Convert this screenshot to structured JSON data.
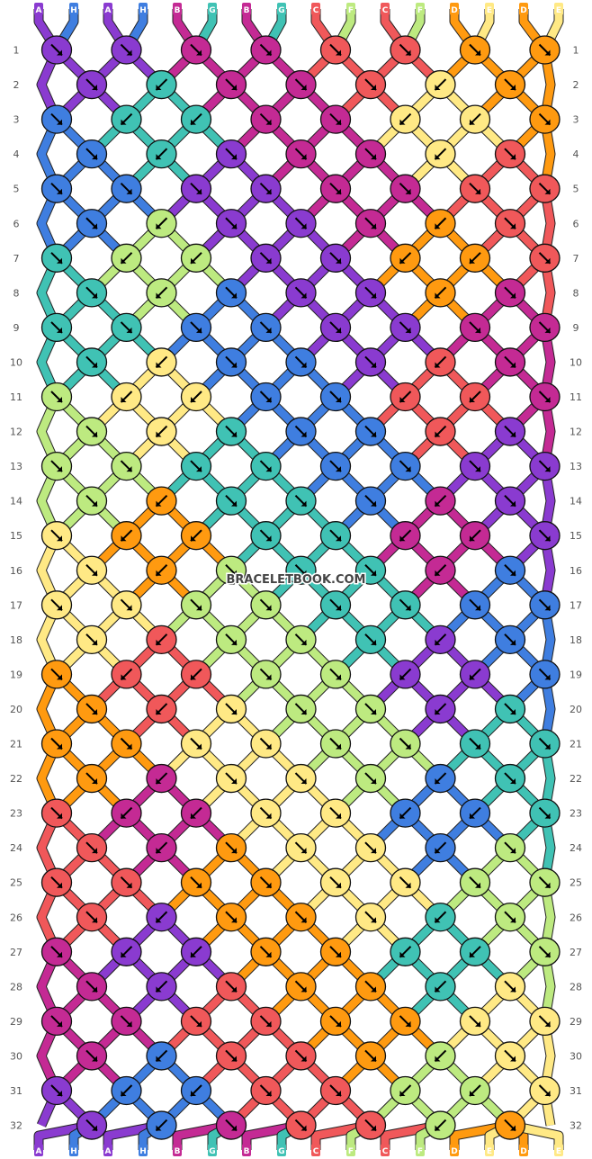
{
  "watermark": "BRACELETBOOK.COM",
  "colors": {
    "A": "#8a3bd0",
    "H": "#3f7ee0",
    "B": "#c42a94",
    "G": "#40c2b4",
    "C": "#f0585a",
    "F": "#bdea80",
    "D": "#ff9a10",
    "E": "#ffe985"
  },
  "top_strings": [
    "A",
    "H",
    "A",
    "H",
    "B",
    "G",
    "B",
    "G",
    "C",
    "F",
    "C",
    "F",
    "D",
    "E",
    "D",
    "E"
  ],
  "bottom_strings": [
    "A",
    "H",
    "A",
    "H",
    "B",
    "G",
    "B",
    "G",
    "C",
    "F",
    "C",
    "F",
    "D",
    "E",
    "D",
    "E"
  ],
  "row_numbers": [
    "1",
    "2",
    "3",
    "4",
    "5",
    "6",
    "7",
    "8",
    "9",
    "10",
    "11",
    "12",
    "13",
    "14",
    "15",
    "16",
    "17",
    "18",
    "19",
    "20",
    "21",
    "22",
    "23",
    "24",
    "25",
    "26",
    "27",
    "28",
    "29",
    "30",
    "31",
    "32"
  ],
  "knot_rows": [
    {
      "row": "1",
      "knots": [
        {
          "c": "A",
          "d": "r"
        },
        {
          "c": "A",
          "d": "r"
        },
        {
          "c": "B",
          "d": "r"
        },
        {
          "c": "B",
          "d": "r"
        },
        {
          "c": "C",
          "d": "r"
        },
        {
          "c": "C",
          "d": "r"
        },
        {
          "c": "D",
          "d": "r"
        },
        {
          "c": "D",
          "d": "r"
        }
      ]
    },
    {
      "row": "2",
      "knots": [
        {
          "c": "A",
          "d": "r"
        },
        {
          "c": "G",
          "d": "l"
        },
        {
          "c": "B",
          "d": "r"
        },
        {
          "c": "B",
          "d": "r"
        },
        {
          "c": "C",
          "d": "r"
        },
        {
          "c": "E",
          "d": "l"
        },
        {
          "c": "D",
          "d": "r"
        }
      ]
    },
    {
      "row": "3",
      "knots": [
        {
          "c": "H",
          "d": "r"
        },
        {
          "c": "G",
          "d": "l"
        },
        {
          "c": "G",
          "d": "l"
        },
        {
          "c": "B",
          "d": "r"
        },
        {
          "c": "B",
          "d": "r"
        },
        {
          "c": "E",
          "d": "l"
        },
        {
          "c": "E",
          "d": "l"
        },
        {
          "c": "D",
          "d": "r"
        }
      ]
    },
    {
      "row": "4",
      "knots": [
        {
          "c": "H",
          "d": "r"
        },
        {
          "c": "G",
          "d": "l"
        },
        {
          "c": "A",
          "d": "r"
        },
        {
          "c": "B",
          "d": "r"
        },
        {
          "c": "B",
          "d": "r"
        },
        {
          "c": "E",
          "d": "l"
        },
        {
          "c": "C",
          "d": "r"
        }
      ]
    },
    {
      "row": "5",
      "knots": [
        {
          "c": "H",
          "d": "r"
        },
        {
          "c": "H",
          "d": "r"
        },
        {
          "c": "A",
          "d": "r"
        },
        {
          "c": "A",
          "d": "r"
        },
        {
          "c": "B",
          "d": "r"
        },
        {
          "c": "B",
          "d": "r"
        },
        {
          "c": "C",
          "d": "r"
        },
        {
          "c": "C",
          "d": "r"
        }
      ]
    },
    {
      "row": "6",
      "knots": [
        {
          "c": "H",
          "d": "r"
        },
        {
          "c": "F",
          "d": "l"
        },
        {
          "c": "A",
          "d": "r"
        },
        {
          "c": "A",
          "d": "r"
        },
        {
          "c": "B",
          "d": "r"
        },
        {
          "c": "D",
          "d": "l"
        },
        {
          "c": "C",
          "d": "r"
        }
      ]
    },
    {
      "row": "7",
      "knots": [
        {
          "c": "G",
          "d": "r"
        },
        {
          "c": "F",
          "d": "l"
        },
        {
          "c": "F",
          "d": "l"
        },
        {
          "c": "A",
          "d": "r"
        },
        {
          "c": "A",
          "d": "r"
        },
        {
          "c": "D",
          "d": "l"
        },
        {
          "c": "D",
          "d": "l"
        },
        {
          "c": "C",
          "d": "r"
        }
      ]
    },
    {
      "row": "8",
      "knots": [
        {
          "c": "G",
          "d": "r"
        },
        {
          "c": "F",
          "d": "l"
        },
        {
          "c": "H",
          "d": "r"
        },
        {
          "c": "A",
          "d": "r"
        },
        {
          "c": "A",
          "d": "r"
        },
        {
          "c": "D",
          "d": "l"
        },
        {
          "c": "B",
          "d": "r"
        }
      ]
    },
    {
      "row": "9",
      "knots": [
        {
          "c": "G",
          "d": "r"
        },
        {
          "c": "G",
          "d": "r"
        },
        {
          "c": "H",
          "d": "r"
        },
        {
          "c": "H",
          "d": "r"
        },
        {
          "c": "A",
          "d": "r"
        },
        {
          "c": "A",
          "d": "r"
        },
        {
          "c": "B",
          "d": "r"
        },
        {
          "c": "B",
          "d": "r"
        }
      ]
    },
    {
      "row": "10",
      "knots": [
        {
          "c": "G",
          "d": "r"
        },
        {
          "c": "E",
          "d": "l"
        },
        {
          "c": "H",
          "d": "r"
        },
        {
          "c": "H",
          "d": "r"
        },
        {
          "c": "A",
          "d": "r"
        },
        {
          "c": "C",
          "d": "l"
        },
        {
          "c": "B",
          "d": "r"
        }
      ]
    },
    {
      "row": "11",
      "knots": [
        {
          "c": "F",
          "d": "r"
        },
        {
          "c": "E",
          "d": "l"
        },
        {
          "c": "E",
          "d": "l"
        },
        {
          "c": "H",
          "d": "r"
        },
        {
          "c": "H",
          "d": "r"
        },
        {
          "c": "C",
          "d": "l"
        },
        {
          "c": "C",
          "d": "l"
        },
        {
          "c": "B",
          "d": "r"
        }
      ]
    },
    {
      "row": "12",
      "knots": [
        {
          "c": "F",
          "d": "r"
        },
        {
          "c": "E",
          "d": "l"
        },
        {
          "c": "G",
          "d": "r"
        },
        {
          "c": "H",
          "d": "r"
        },
        {
          "c": "H",
          "d": "r"
        },
        {
          "c": "C",
          "d": "l"
        },
        {
          "c": "A",
          "d": "r"
        }
      ]
    },
    {
      "row": "13",
      "knots": [
        {
          "c": "F",
          "d": "r"
        },
        {
          "c": "F",
          "d": "r"
        },
        {
          "c": "G",
          "d": "r"
        },
        {
          "c": "G",
          "d": "r"
        },
        {
          "c": "H",
          "d": "r"
        },
        {
          "c": "H",
          "d": "r"
        },
        {
          "c": "A",
          "d": "r"
        },
        {
          "c": "A",
          "d": "r"
        }
      ]
    },
    {
      "row": "14",
      "knots": [
        {
          "c": "F",
          "d": "r"
        },
        {
          "c": "D",
          "d": "l"
        },
        {
          "c": "G",
          "d": "r"
        },
        {
          "c": "G",
          "d": "r"
        },
        {
          "c": "H",
          "d": "r"
        },
        {
          "c": "B",
          "d": "l"
        },
        {
          "c": "A",
          "d": "r"
        }
      ]
    },
    {
      "row": "15",
      "knots": [
        {
          "c": "E",
          "d": "r"
        },
        {
          "c": "D",
          "d": "l"
        },
        {
          "c": "D",
          "d": "l"
        },
        {
          "c": "G",
          "d": "r"
        },
        {
          "c": "G",
          "d": "r"
        },
        {
          "c": "B",
          "d": "l"
        },
        {
          "c": "B",
          "d": "l"
        },
        {
          "c": "A",
          "d": "r"
        }
      ]
    },
    {
      "row": "16",
      "knots": [
        {
          "c": "E",
          "d": "r"
        },
        {
          "c": "D",
          "d": "l"
        },
        {
          "c": "F",
          "d": "r"
        },
        {
          "c": "G",
          "d": "r"
        },
        {
          "c": "G",
          "d": "r"
        },
        {
          "c": "B",
          "d": "l"
        },
        {
          "c": "H",
          "d": "r"
        }
      ]
    },
    {
      "row": "17",
      "knots": [
        {
          "c": "E",
          "d": "r"
        },
        {
          "c": "E",
          "d": "r"
        },
        {
          "c": "F",
          "d": "r"
        },
        {
          "c": "F",
          "d": "r"
        },
        {
          "c": "G",
          "d": "r"
        },
        {
          "c": "G",
          "d": "r"
        },
        {
          "c": "H",
          "d": "r"
        },
        {
          "c": "H",
          "d": "r"
        }
      ]
    },
    {
      "row": "18",
      "knots": [
        {
          "c": "E",
          "d": "r"
        },
        {
          "c": "C",
          "d": "l"
        },
        {
          "c": "F",
          "d": "r"
        },
        {
          "c": "F",
          "d": "r"
        },
        {
          "c": "G",
          "d": "r"
        },
        {
          "c": "A",
          "d": "l"
        },
        {
          "c": "H",
          "d": "r"
        }
      ]
    },
    {
      "row": "19",
      "knots": [
        {
          "c": "D",
          "d": "r"
        },
        {
          "c": "C",
          "d": "l"
        },
        {
          "c": "C",
          "d": "l"
        },
        {
          "c": "F",
          "d": "r"
        },
        {
          "c": "F",
          "d": "r"
        },
        {
          "c": "A",
          "d": "l"
        },
        {
          "c": "A",
          "d": "l"
        },
        {
          "c": "H",
          "d": "r"
        }
      ]
    },
    {
      "row": "20",
      "knots": [
        {
          "c": "D",
          "d": "r"
        },
        {
          "c": "C",
          "d": "l"
        },
        {
          "c": "E",
          "d": "r"
        },
        {
          "c": "F",
          "d": "r"
        },
        {
          "c": "F",
          "d": "r"
        },
        {
          "c": "A",
          "d": "l"
        },
        {
          "c": "G",
          "d": "r"
        }
      ]
    },
    {
      "row": "21",
      "knots": [
        {
          "c": "D",
          "d": "r"
        },
        {
          "c": "D",
          "d": "r"
        },
        {
          "c": "E",
          "d": "r"
        },
        {
          "c": "E",
          "d": "r"
        },
        {
          "c": "F",
          "d": "r"
        },
        {
          "c": "F",
          "d": "r"
        },
        {
          "c": "G",
          "d": "r"
        },
        {
          "c": "G",
          "d": "r"
        }
      ]
    },
    {
      "row": "22",
      "knots": [
        {
          "c": "D",
          "d": "r"
        },
        {
          "c": "B",
          "d": "l"
        },
        {
          "c": "E",
          "d": "r"
        },
        {
          "c": "E",
          "d": "r"
        },
        {
          "c": "F",
          "d": "r"
        },
        {
          "c": "H",
          "d": "l"
        },
        {
          "c": "G",
          "d": "r"
        }
      ]
    },
    {
      "row": "23",
      "knots": [
        {
          "c": "C",
          "d": "r"
        },
        {
          "c": "B",
          "d": "l"
        },
        {
          "c": "B",
          "d": "l"
        },
        {
          "c": "E",
          "d": "r"
        },
        {
          "c": "E",
          "d": "r"
        },
        {
          "c": "H",
          "d": "l"
        },
        {
          "c": "H",
          "d": "l"
        },
        {
          "c": "G",
          "d": "r"
        }
      ]
    },
    {
      "row": "24",
      "knots": [
        {
          "c": "C",
          "d": "r"
        },
        {
          "c": "B",
          "d": "l"
        },
        {
          "c": "D",
          "d": "r"
        },
        {
          "c": "E",
          "d": "r"
        },
        {
          "c": "E",
          "d": "r"
        },
        {
          "c": "H",
          "d": "l"
        },
        {
          "c": "F",
          "d": "r"
        }
      ]
    },
    {
      "row": "25",
      "knots": [
        {
          "c": "C",
          "d": "r"
        },
        {
          "c": "C",
          "d": "r"
        },
        {
          "c": "D",
          "d": "r"
        },
        {
          "c": "D",
          "d": "r"
        },
        {
          "c": "E",
          "d": "r"
        },
        {
          "c": "E",
          "d": "r"
        },
        {
          "c": "F",
          "d": "r"
        },
        {
          "c": "F",
          "d": "r"
        }
      ]
    },
    {
      "row": "26",
      "knots": [
        {
          "c": "C",
          "d": "r"
        },
        {
          "c": "A",
          "d": "l"
        },
        {
          "c": "D",
          "d": "r"
        },
        {
          "c": "D",
          "d": "r"
        },
        {
          "c": "E",
          "d": "r"
        },
        {
          "c": "G",
          "d": "l"
        },
        {
          "c": "F",
          "d": "r"
        }
      ]
    },
    {
      "row": "27",
      "knots": [
        {
          "c": "B",
          "d": "r"
        },
        {
          "c": "A",
          "d": "l"
        },
        {
          "c": "A",
          "d": "l"
        },
        {
          "c": "D",
          "d": "r"
        },
        {
          "c": "D",
          "d": "r"
        },
        {
          "c": "G",
          "d": "l"
        },
        {
          "c": "G",
          "d": "l"
        },
        {
          "c": "F",
          "d": "r"
        }
      ]
    },
    {
      "row": "28",
      "knots": [
        {
          "c": "B",
          "d": "r"
        },
        {
          "c": "A",
          "d": "l"
        },
        {
          "c": "C",
          "d": "r"
        },
        {
          "c": "D",
          "d": "r"
        },
        {
          "c": "D",
          "d": "r"
        },
        {
          "c": "G",
          "d": "l"
        },
        {
          "c": "E",
          "d": "r"
        }
      ]
    },
    {
      "row": "29",
      "knots": [
        {
          "c": "B",
          "d": "r"
        },
        {
          "c": "B",
          "d": "r"
        },
        {
          "c": "C",
          "d": "r"
        },
        {
          "c": "C",
          "d": "r"
        },
        {
          "c": "D",
          "d": "r"
        },
        {
          "c": "D",
          "d": "r"
        },
        {
          "c": "E",
          "d": "r"
        },
        {
          "c": "E",
          "d": "r"
        }
      ]
    },
    {
      "row": "30",
      "knots": [
        {
          "c": "B",
          "d": "r"
        },
        {
          "c": "H",
          "d": "l"
        },
        {
          "c": "C",
          "d": "r"
        },
        {
          "c": "C",
          "d": "r"
        },
        {
          "c": "D",
          "d": "r"
        },
        {
          "c": "F",
          "d": "l"
        },
        {
          "c": "E",
          "d": "r"
        }
      ]
    },
    {
      "row": "31",
      "knots": [
        {
          "c": "A",
          "d": "r"
        },
        {
          "c": "H",
          "d": "l"
        },
        {
          "c": "H",
          "d": "l"
        },
        {
          "c": "C",
          "d": "r"
        },
        {
          "c": "C",
          "d": "r"
        },
        {
          "c": "F",
          "d": "l"
        },
        {
          "c": "F",
          "d": "l"
        },
        {
          "c": "E",
          "d": "r"
        }
      ]
    },
    {
      "row": "32",
      "knots": [
        {
          "c": "A",
          "d": "r"
        },
        {
          "c": "H",
          "d": "l"
        },
        {
          "c": "B",
          "d": "r"
        },
        {
          "c": "C",
          "d": "r"
        },
        {
          "c": "C",
          "d": "r"
        },
        {
          "c": "F",
          "d": "l"
        },
        {
          "c": "D",
          "d": "r"
        }
      ]
    }
  ]
}
